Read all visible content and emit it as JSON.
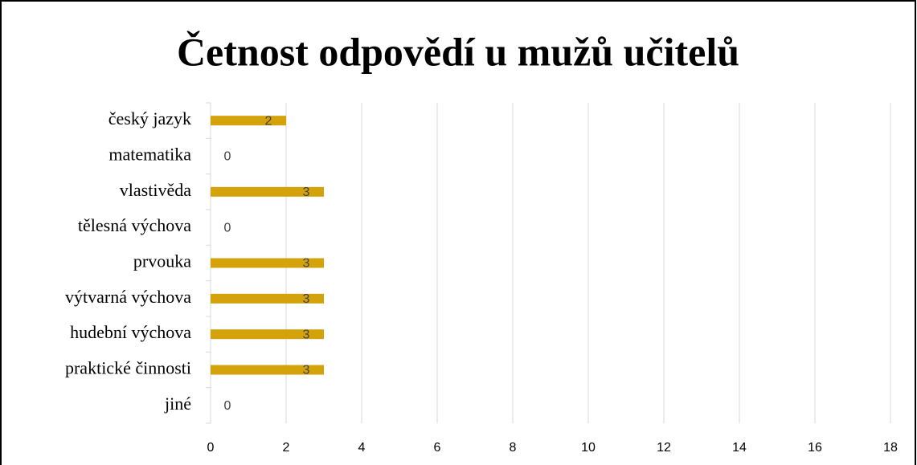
{
  "chart_data": {
    "type": "bar",
    "orientation": "horizontal",
    "title": "Četnost odpovědí  u mužů učitelů",
    "categories": [
      "český jazyk",
      "matematika",
      "vlastivěda",
      "tělesná výchova",
      "prvouka",
      "výtvarná výchova",
      "hudební výchova",
      "praktické činnosti",
      "jiné"
    ],
    "values": [
      2,
      0,
      3,
      0,
      3,
      3,
      3,
      3,
      0
    ],
    "color": "#d4a20a",
    "xlim": [
      0,
      18
    ],
    "xticks": [
      0,
      2,
      4,
      6,
      8,
      10,
      12,
      14,
      16,
      18
    ],
    "grid": true
  }
}
